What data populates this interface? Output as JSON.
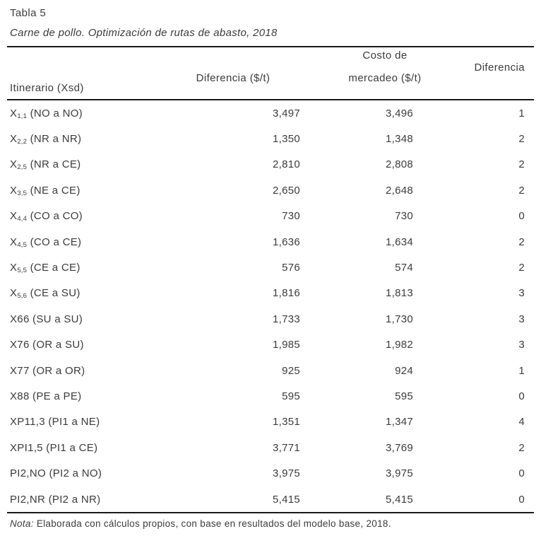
{
  "title": "Tabla 5",
  "subtitle": "Carne de pollo. Optimización de rutas de abasto, 2018",
  "columns": {
    "itinerary": "Itinerario (Xsd)",
    "difference1": "Diferencia ($/t)",
    "cost_line1": "Costo de",
    "cost_line2": "mercadeo ($/t)",
    "difference2": "Diferencia"
  },
  "rows": [
    {
      "itinerary_pre": "X",
      "itinerary_sub": "1,1",
      "itinerary_post": " (NO a NO)",
      "diferencia": "3,497",
      "costo_mercadeo": "3,496",
      "diferencia2": "1"
    },
    {
      "itinerary_pre": "X",
      "itinerary_sub": "2,2",
      "itinerary_post": " (NR a NR)",
      "diferencia": "1,350",
      "costo_mercadeo": "1,348",
      "diferencia2": "2"
    },
    {
      "itinerary_pre": "X",
      "itinerary_sub": "2,5",
      "itinerary_post": " (NR a CE)",
      "diferencia": "2,810",
      "costo_mercadeo": "2,808",
      "diferencia2": "2"
    },
    {
      "itinerary_pre": "X",
      "itinerary_sub": "3,5",
      "itinerary_post": " (NE a CE)",
      "diferencia": "2,650",
      "costo_mercadeo": "2,648",
      "diferencia2": "2"
    },
    {
      "itinerary_pre": "X",
      "itinerary_sub": "4,4",
      "itinerary_post": " (CO a CO)",
      "diferencia": "730",
      "costo_mercadeo": "730",
      "diferencia2": "0"
    },
    {
      "itinerary_pre": "X",
      "itinerary_sub": "4,5",
      "itinerary_post": " (CO a CE)",
      "diferencia": "1,636",
      "costo_mercadeo": "1,634",
      "diferencia2": "2"
    },
    {
      "itinerary_pre": "X",
      "itinerary_sub": "5,5",
      "itinerary_post": " (CE a CE)",
      "diferencia": "576",
      "costo_mercadeo": "574",
      "diferencia2": "2"
    },
    {
      "itinerary_pre": "X",
      "itinerary_sub": "5,6",
      "itinerary_post": " (CE a SU)",
      "diferencia": "1,816",
      "costo_mercadeo": "1,813",
      "diferencia2": "3"
    },
    {
      "itinerary_pre": "X66 (SU a SU)",
      "itinerary_sub": "",
      "itinerary_post": "",
      "diferencia": "1,733",
      "costo_mercadeo": "1,730",
      "diferencia2": "3"
    },
    {
      "itinerary_pre": "X76 (OR a SU)",
      "itinerary_sub": "",
      "itinerary_post": "",
      "diferencia": "1,985",
      "costo_mercadeo": "1,982",
      "diferencia2": "3"
    },
    {
      "itinerary_pre": "X77 (OR a OR)",
      "itinerary_sub": "",
      "itinerary_post": "",
      "diferencia": "925",
      "costo_mercadeo": "924",
      "diferencia2": "1"
    },
    {
      "itinerary_pre": "X88 (PE a PE)",
      "itinerary_sub": "",
      "itinerary_post": "",
      "diferencia": "595",
      "costo_mercadeo": "595",
      "diferencia2": "0"
    },
    {
      "itinerary_pre": "XP11,3 (PI1 a NE)",
      "itinerary_sub": "",
      "itinerary_post": "",
      "diferencia": "1,351",
      "costo_mercadeo": "1,347",
      "diferencia2": "4"
    },
    {
      "itinerary_pre": "XPI1,5 (PI1 a CE)",
      "itinerary_sub": "",
      "itinerary_post": "",
      "diferencia": "3,771",
      "costo_mercadeo": "3,769",
      "diferencia2": "2"
    },
    {
      "itinerary_pre": "PI2,NO (PI2 a NO)",
      "itinerary_sub": "",
      "itinerary_post": "",
      "diferencia": "3,975",
      "costo_mercadeo": "3,975",
      "diferencia2": "0"
    },
    {
      "itinerary_pre": "PI2,NR (PI2 a NR)",
      "itinerary_sub": "",
      "itinerary_post": "",
      "diferencia": "5,415",
      "costo_mercadeo": "5,415",
      "diferencia2": "0"
    }
  ],
  "note": {
    "label": "Nota:",
    "text": " Elaborada con cálculos propios, con base en resultados del modelo base, 2018."
  },
  "colors": {
    "text": "#3b3b3b",
    "rule": "#1a1a1a",
    "background": "#ffffff"
  }
}
